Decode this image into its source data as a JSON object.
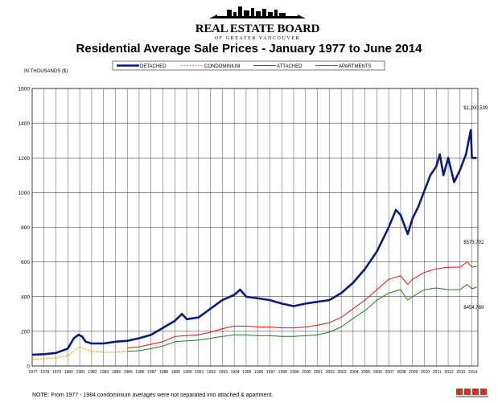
{
  "brand": {
    "name_line1": "REAL ESTATE BOARD",
    "name_line2": "OF GREATER VANCOUVER"
  },
  "note": "NOTE:  From 1977 - 1984 condominium averages were not separated into attached & apartment.",
  "colors": {
    "detached": "#0a1a7a",
    "condominium": "#f0a000",
    "attached": "#e01010",
    "apartments": "#1e7d1e",
    "grid": "#222222"
  },
  "chart_data": {
    "type": "line",
    "title": "Residential Average Sale Prices  -  January 1977 to June 2014",
    "ylabel": "IN THOUSANDS ($)",
    "xlabel": "",
    "ylim": [
      0,
      1600
    ],
    "yticks": [
      0,
      200,
      400,
      600,
      800,
      1000,
      1200,
      1400,
      1600
    ],
    "xticks": [
      "1977",
      "1978",
      "1979",
      "1980",
      "1981",
      "1982",
      "1983",
      "1984",
      "1985",
      "1986",
      "1987",
      "1988",
      "1989",
      "1990",
      "1991",
      "1992",
      "1993",
      "1994",
      "1995",
      "1996",
      "1997",
      "1998",
      "1999",
      "2000",
      "2001",
      "2002",
      "2003",
      "2004",
      "2005",
      "2006",
      "2007",
      "2008",
      "2009",
      "2010",
      "2011",
      "2012",
      "2013",
      "2014"
    ],
    "xlim": [
      1977,
      2014.5
    ],
    "grid": true,
    "legend_position": "top",
    "annotations": [
      {
        "text": "$1,200,539",
        "x": 2013.3,
        "y": 1480
      },
      {
        "text": "$573,702",
        "x": 2013.3,
        "y": 705
      },
      {
        "text": "$454,769",
        "x": 2013.3,
        "y": 330
      }
    ],
    "series": [
      {
        "name": "DETACHED",
        "style": "thick",
        "x": [
          1977,
          1978,
          1979,
          1980,
          1980.5,
          1980.9,
          1981.2,
          1981.5,
          1982,
          1983,
          1984,
          1985,
          1986,
          1987,
          1988,
          1989,
          1989.6,
          1990,
          1991,
          1992,
          1993,
          1994,
          1994.5,
          1995,
          1996,
          1997,
          1998,
          1999,
          2000,
          2001,
          2002,
          2003,
          2004,
          2005,
          2006,
          2007,
          2007.6,
          2008,
          2008.6,
          2009,
          2009.5,
          2010,
          2010.5,
          2011,
          2011.3,
          2011.6,
          2012,
          2012.5,
          2013,
          2013.5,
          2013.9,
          2014,
          2014.4
        ],
        "y": [
          65,
          68,
          75,
          100,
          160,
          180,
          170,
          140,
          130,
          130,
          140,
          145,
          160,
          180,
          220,
          260,
          300,
          270,
          280,
          330,
          380,
          410,
          440,
          400,
          390,
          380,
          360,
          345,
          360,
          370,
          380,
          420,
          480,
          560,
          660,
          800,
          900,
          870,
          760,
          850,
          920,
          1010,
          1100,
          1150,
          1220,
          1100,
          1200,
          1060,
          1130,
          1220,
          1360,
          1200,
          1200
        ]
      },
      {
        "name": "CONDOMINIUM",
        "style": "dashed",
        "x": [
          1977,
          1978,
          1979,
          1980,
          1980.5,
          1981,
          1981.5,
          1982,
          1983,
          1984,
          1985
        ],
        "y": [
          40,
          42,
          48,
          60,
          85,
          110,
          95,
          85,
          80,
          80,
          85
        ]
      },
      {
        "name": "ATTACHED",
        "style": "thin",
        "x": [
          1985,
          1986,
          1987,
          1988,
          1989,
          1990,
          1991,
          1992,
          1993,
          1994,
          1995,
          1996,
          1997,
          1998,
          1999,
          2000,
          2001,
          2002,
          2003,
          2004,
          2005,
          2006,
          2007,
          2008,
          2008.6,
          2009,
          2010,
          2011,
          2012,
          2013,
          2013.6,
          2014,
          2014.4
        ],
        "y": [
          105,
          110,
          125,
          140,
          170,
          175,
          180,
          195,
          215,
          230,
          230,
          225,
          225,
          220,
          220,
          225,
          235,
          250,
          280,
          330,
          380,
          440,
          500,
          520,
          470,
          500,
          540,
          560,
          570,
          570,
          600,
          570,
          574
        ]
      },
      {
        "name": "APARTMENTS",
        "style": "thin",
        "x": [
          1985,
          1986,
          1987,
          1988,
          1989,
          1990,
          1991,
          1992,
          1993,
          1994,
          1995,
          1996,
          1997,
          1998,
          1999,
          2000,
          2001,
          2002,
          2003,
          2004,
          2005,
          2006,
          2007,
          2008,
          2008.6,
          2009,
          2010,
          2011,
          2012,
          2013,
          2013.6,
          2014,
          2014.4
        ],
        "y": [
          85,
          88,
          100,
          115,
          140,
          145,
          150,
          160,
          170,
          180,
          180,
          175,
          175,
          170,
          170,
          175,
          180,
          195,
          225,
          275,
          320,
          380,
          420,
          440,
          380,
          400,
          440,
          450,
          440,
          440,
          470,
          445,
          455
        ]
      }
    ]
  }
}
